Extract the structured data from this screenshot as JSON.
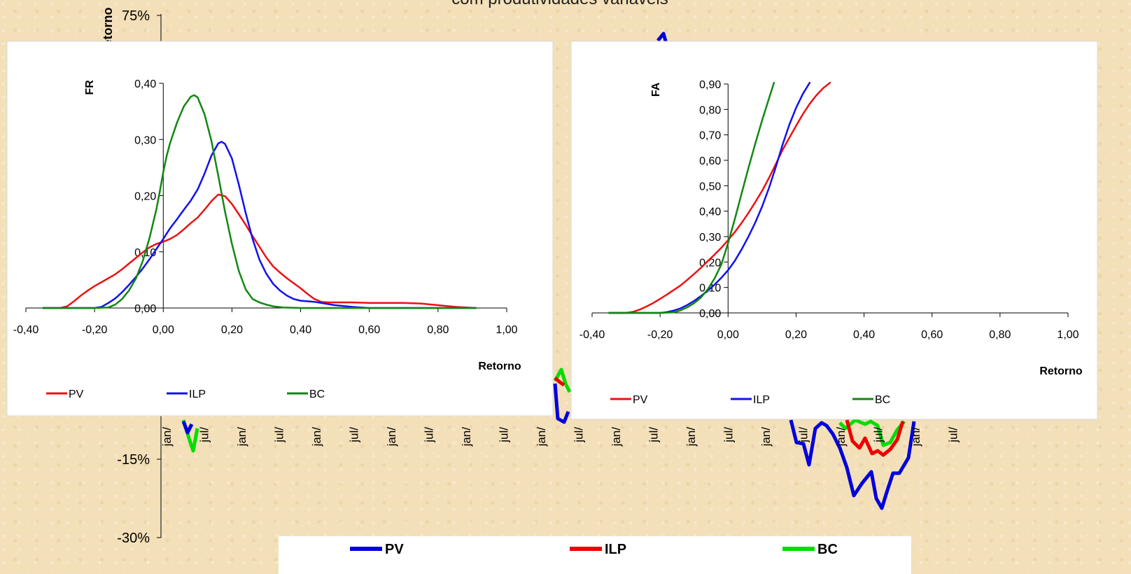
{
  "chart_data": [
    {
      "type": "line",
      "title": "com produtividades variáveis",
      "ylabel": "Retorno",
      "yticks": [
        "75%",
        "-15%",
        "-30%"
      ],
      "xticks": [
        "jan/",
        "jul/",
        "jan/",
        "jul/",
        "jan/",
        "jul/",
        "jan/",
        "jul/",
        "jan/",
        "jul/",
        "jan/",
        "jul/",
        "jan/",
        "jul/",
        "jan/",
        "jul/",
        "jan/",
        "jul/",
        "jan/",
        "jul/",
        "jan/",
        "jul/"
      ],
      "legend": [
        "PV",
        "ILP",
        "BC"
      ],
      "series": [
        {
          "name": "PV",
          "color": "#0000dd",
          "values": []
        },
        {
          "name": "ILP",
          "color": "#ee0000",
          "values": []
        },
        {
          "name": "BC",
          "color": "#00dd00",
          "values": []
        }
      ]
    },
    {
      "type": "line",
      "ylabel": "FR",
      "xlabel": "Retorno",
      "xlim": [
        -0.4,
        1.0
      ],
      "ylim": [
        0,
        0.4
      ],
      "xticks": [
        "-0,40",
        "-0,20",
        "0,00",
        "0,20",
        "0,40",
        "0,60",
        "0,80",
        "1,00"
      ],
      "yticks": [
        "0,00",
        "0,10",
        "0,20",
        "0,30",
        "0,40"
      ],
      "legend_position": "bottom",
      "series": [
        {
          "name": "PV",
          "color": "#ee1111",
          "x": [
            -0.35,
            -0.32,
            -0.3,
            -0.28,
            -0.26,
            -0.24,
            -0.22,
            -0.2,
            -0.18,
            -0.16,
            -0.14,
            -0.12,
            -0.1,
            -0.08,
            -0.06,
            -0.04,
            -0.02,
            0.0,
            0.02,
            0.04,
            0.06,
            0.08,
            0.1,
            0.12,
            0.14,
            0.16,
            0.18,
            0.2,
            0.22,
            0.24,
            0.26,
            0.28,
            0.3,
            0.32,
            0.34,
            0.36,
            0.38,
            0.4,
            0.42,
            0.44,
            0.46,
            0.48,
            0.5,
            0.55,
            0.6,
            0.65,
            0.7,
            0.75,
            0.8,
            0.85,
            0.91
          ],
          "y": [
            0.0,
            0.0,
            0.0,
            0.003,
            0.012,
            0.022,
            0.031,
            0.039,
            0.046,
            0.053,
            0.06,
            0.069,
            0.079,
            0.089,
            0.099,
            0.108,
            0.114,
            0.118,
            0.123,
            0.13,
            0.14,
            0.151,
            0.161,
            0.175,
            0.19,
            0.202,
            0.199,
            0.185,
            0.167,
            0.148,
            0.128,
            0.109,
            0.09,
            0.074,
            0.063,
            0.053,
            0.044,
            0.035,
            0.025,
            0.016,
            0.011,
            0.01,
            0.01,
            0.01,
            0.009,
            0.009,
            0.009,
            0.008,
            0.005,
            0.002,
            0.0
          ]
        },
        {
          "name": "ILP",
          "color": "#1111ee",
          "x": [
            -0.35,
            -0.3,
            -0.25,
            -0.2,
            -0.18,
            -0.16,
            -0.14,
            -0.12,
            -0.1,
            -0.08,
            -0.06,
            -0.04,
            -0.02,
            0.0,
            0.02,
            0.04,
            0.06,
            0.08,
            0.1,
            0.12,
            0.14,
            0.16,
            0.17,
            0.18,
            0.2,
            0.22,
            0.24,
            0.26,
            0.28,
            0.3,
            0.32,
            0.34,
            0.36,
            0.38,
            0.4,
            0.42,
            0.44,
            0.46,
            0.48,
            0.5,
            0.55,
            0.6,
            0.7,
            0.8,
            0.91
          ],
          "y": [
            0.0,
            0.0,
            0.0,
            0.0,
            0.002,
            0.009,
            0.017,
            0.028,
            0.041,
            0.055,
            0.07,
            0.087,
            0.105,
            0.123,
            0.142,
            0.158,
            0.175,
            0.191,
            0.211,
            0.239,
            0.271,
            0.293,
            0.296,
            0.292,
            0.266,
            0.22,
            0.169,
            0.123,
            0.086,
            0.061,
            0.043,
            0.031,
            0.022,
            0.016,
            0.013,
            0.012,
            0.011,
            0.009,
            0.007,
            0.005,
            0.002,
            0.0,
            0.0,
            0.0,
            0.0
          ]
        },
        {
          "name": "BC",
          "color": "#118811",
          "x": [
            -0.35,
            -0.3,
            -0.25,
            -0.2,
            -0.16,
            -0.14,
            -0.12,
            -0.1,
            -0.08,
            -0.06,
            -0.04,
            -0.02,
            -0.01,
            0.0,
            0.01,
            0.02,
            0.04,
            0.06,
            0.08,
            0.09,
            0.1,
            0.12,
            0.14,
            0.16,
            0.18,
            0.2,
            0.22,
            0.24,
            0.26,
            0.28,
            0.3,
            0.32,
            0.35,
            0.4,
            0.5,
            0.6,
            0.8,
            0.91
          ],
          "y": [
            0.0,
            0.0,
            0.0,
            0.0,
            0.001,
            0.006,
            0.016,
            0.031,
            0.052,
            0.083,
            0.125,
            0.176,
            0.208,
            0.242,
            0.271,
            0.294,
            0.33,
            0.359,
            0.376,
            0.379,
            0.375,
            0.345,
            0.298,
            0.236,
            0.171,
            0.114,
            0.066,
            0.033,
            0.016,
            0.01,
            0.006,
            0.003,
            0.001,
            0.0,
            0.0,
            0.0,
            0.0,
            0.0
          ]
        }
      ]
    },
    {
      "type": "line",
      "ylabel": "FA",
      "xlabel": "Retorno",
      "xlim": [
        -0.4,
        1.0
      ],
      "ylim": [
        0,
        0.9
      ],
      "xticks": [
        "-0,40",
        "-0,20",
        "0,00",
        "0,20",
        "0,40",
        "0,60",
        "0,80",
        "1,00"
      ],
      "yticks": [
        "0,00",
        "0,10",
        "0,20",
        "0,30",
        "0,40",
        "0,50",
        "0,60",
        "0,70",
        "0,80",
        "0,90"
      ],
      "legend_position": "bottom",
      "series": [
        {
          "name": "PV",
          "color": "#ee1111",
          "x": [
            -0.35,
            -0.3,
            -0.28,
            -0.26,
            -0.24,
            -0.22,
            -0.2,
            -0.18,
            -0.16,
            -0.14,
            -0.12,
            -0.1,
            -0.08,
            -0.06,
            -0.04,
            -0.02,
            0.0,
            0.02,
            0.04,
            0.06,
            0.08,
            0.1,
            0.12,
            0.14,
            0.16,
            0.18,
            0.2,
            0.22,
            0.24,
            0.26,
            0.28,
            0.3
          ],
          "y": [
            0.0,
            0.0,
            0.004,
            0.013,
            0.025,
            0.039,
            0.055,
            0.072,
            0.09,
            0.108,
            0.13,
            0.153,
            0.177,
            0.203,
            0.229,
            0.256,
            0.286,
            0.318,
            0.354,
            0.393,
            0.435,
            0.48,
            0.53,
            0.584,
            0.64,
            0.688,
            0.735,
            0.781,
            0.822,
            0.856,
            0.884,
            0.905
          ]
        },
        {
          "name": "ILP",
          "color": "#1111ee",
          "x": [
            -0.35,
            -0.2,
            -0.18,
            -0.16,
            -0.14,
            -0.12,
            -0.1,
            -0.08,
            -0.06,
            -0.04,
            -0.02,
            0.0,
            0.02,
            0.04,
            0.06,
            0.08,
            0.1,
            0.12,
            0.14,
            0.16,
            0.18,
            0.2,
            0.22,
            0.24
          ],
          "y": [
            0.0,
            0.0,
            0.003,
            0.009,
            0.018,
            0.031,
            0.047,
            0.066,
            0.087,
            0.111,
            0.138,
            0.168,
            0.205,
            0.25,
            0.3,
            0.355,
            0.418,
            0.49,
            0.572,
            0.66,
            0.739,
            0.806,
            0.861,
            0.905
          ]
        },
        {
          "name": "BC",
          "color": "#118811",
          "x": [
            -0.35,
            -0.2,
            -0.16,
            -0.14,
            -0.12,
            -0.1,
            -0.08,
            -0.06,
            -0.04,
            -0.02,
            0.0,
            0.02,
            0.04,
            0.06,
            0.08,
            0.1,
            0.12,
            0.135
          ],
          "y": [
            0.0,
            0.0,
            0.002,
            0.01,
            0.022,
            0.038,
            0.06,
            0.092,
            0.135,
            0.19,
            0.275,
            0.37,
            0.47,
            0.57,
            0.665,
            0.757,
            0.842,
            0.905
          ]
        }
      ]
    }
  ]
}
